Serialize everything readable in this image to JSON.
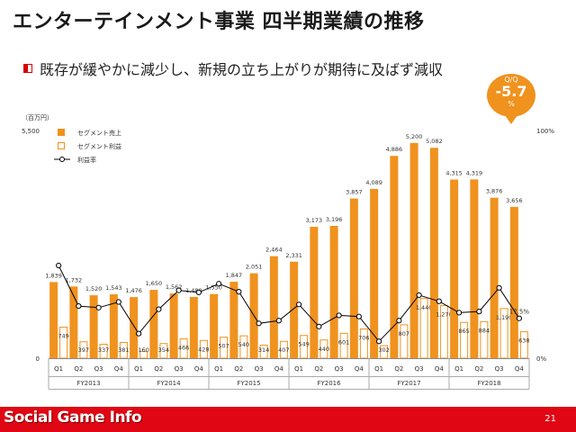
{
  "title": "エンターテインメント事業 四半期業績の推移",
  "subtitle": "既存が緩やかに減少し、新規の立ち上がりが期待に及ばず減収",
  "badge": {
    "label": "Q/Q",
    "value": "-5.7",
    "unit": "%"
  },
  "footer": {
    "logo": "Social Game Info",
    "page": "21"
  },
  "colors": {
    "accent_orange": "#f0921e",
    "profit_border": "#f0921e",
    "footer_red": "#e00614"
  },
  "chart_data": {
    "type": "bar",
    "unit_label": "（百万円）",
    "left_axis": {
      "min": 0,
      "max": 5500,
      "ticks": [
        "0",
        "5,500"
      ]
    },
    "right_axis": {
      "min": 0,
      "max": 100,
      "ticks": [
        "0%",
        "100%"
      ]
    },
    "categories": [
      "Q1",
      "Q2",
      "Q3",
      "Q4",
      "Q1",
      "Q2",
      "Q3",
      "Q4",
      "Q1",
      "Q2",
      "Q3",
      "Q4",
      "Q1",
      "Q2",
      "Q3",
      "Q4",
      "Q1",
      "Q2",
      "Q3",
      "Q4",
      "Q1",
      "Q2",
      "Q3",
      "Q4"
    ],
    "groups": [
      "FY2013",
      "FY2014",
      "FY2015",
      "FY2016",
      "FY2017",
      "FY2018"
    ],
    "series": [
      {
        "name": "セグメント売上",
        "kind": "bar",
        "values": [
          1839,
          1732,
          1520,
          1543,
          1476,
          1650,
          1562,
          1480,
          1550,
          1847,
          2051,
          2464,
          2331,
          3173,
          3196,
          3857,
          4089,
          4886,
          5200,
          5082,
          4315,
          4319,
          3876,
          3656
        ],
        "labels": [
          "1,839",
          "1,732",
          "1,520",
          "1,543",
          "1,476",
          "1,650",
          "1,562",
          "1,480",
          "1,550",
          "1,847",
          "2,051",
          "2,464",
          "2,331",
          "3,173",
          "3,196",
          "3,857",
          "4,089",
          "4,886",
          "5,200",
          "5,082",
          "4,315",
          "4,319",
          "3,876",
          "3,656"
        ]
      },
      {
        "name": "セグメント利益",
        "kind": "bar-outline",
        "values": [
          749,
          397,
          337,
          381,
          160,
          354,
          466,
          428,
          507,
          540,
          314,
          407,
          549,
          440,
          601,
          706,
          302,
          807,
          1440,
          1270,
          865,
          884,
          1199,
          638
        ],
        "labels": [
          "749",
          "397",
          "337",
          "381",
          "160",
          "354",
          "466",
          "428",
          "507",
          "540",
          "314",
          "407",
          "549",
          "440",
          "601",
          "706",
          "302",
          "807",
          "1,440",
          "1,270",
          "865",
          "884",
          "1,199",
          "638"
        ]
      },
      {
        "name": "利益率",
        "kind": "line",
        "values": [
          40.7,
          22.9,
          22.2,
          24.7,
          10.8,
          21.5,
          29.8,
          28.9,
          32.7,
          29.2,
          15.3,
          16.5,
          23.6,
          13.9,
          18.8,
          18.3,
          7.4,
          16.5,
          27.7,
          25.0,
          20.0,
          20.5,
          30.9,
          17.5
        ],
        "labels": [
          "",
          "",
          "",
          "",
          "",
          "",
          "",
          "",
          "",
          "",
          "",
          "",
          "",
          "",
          "",
          "",
          "",
          "",
          "",
          "",
          "",
          "",
          "",
          "17.5%"
        ]
      }
    ]
  }
}
